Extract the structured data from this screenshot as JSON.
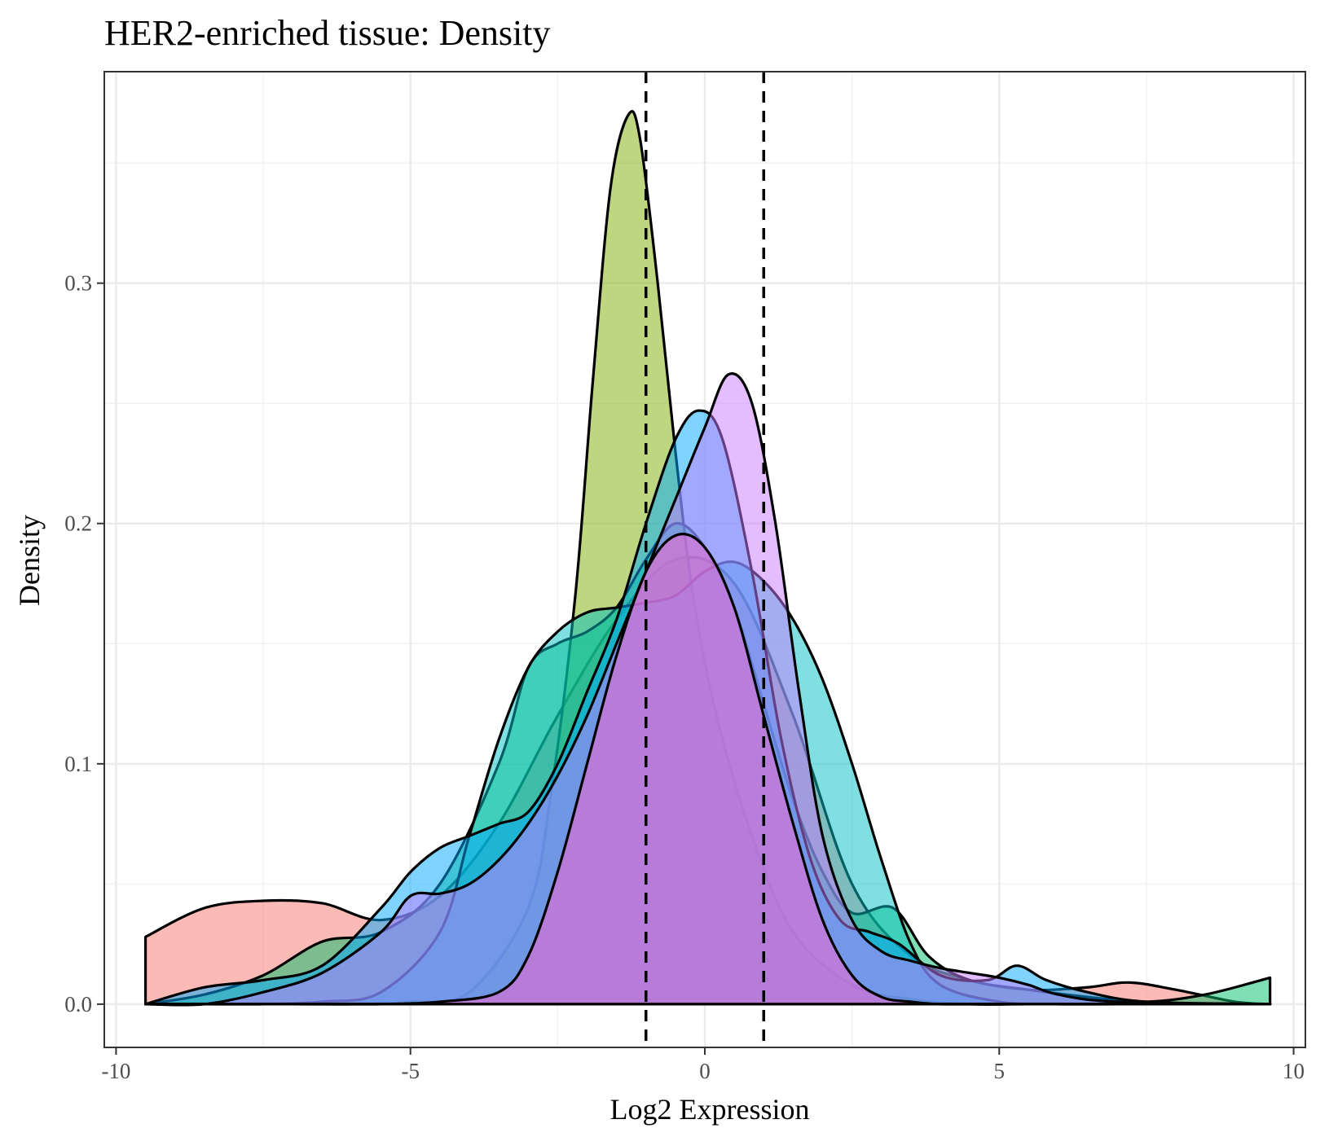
{
  "chart_data": {
    "type": "area",
    "title": "HER2-enriched tissue: Density",
    "xlabel": "Log2 Expression",
    "ylabel": "Density",
    "xlim": [
      -10.2,
      10.2
    ],
    "ylim": [
      -0.018,
      0.388
    ],
    "x_ticks": [
      -10,
      -5,
      0,
      5,
      10
    ],
    "x_tick_labels": [
      "-10",
      "-5",
      "0",
      "5",
      "10"
    ],
    "y_ticks": [
      0.0,
      0.1,
      0.2,
      0.3
    ],
    "y_tick_labels": [
      "0.0",
      "0.1",
      "0.2",
      "0.3"
    ],
    "grid": true,
    "legend": "none",
    "reference_lines_x": [
      -1,
      1
    ],
    "series": [
      {
        "color": "#F8766D",
        "x": [
          -9.5,
          -8.5,
          -7.5,
          -6.5,
          -5.5,
          -4.5,
          -3.5,
          -2.5,
          -1.5,
          -0.5,
          0.5,
          1.5,
          2.5,
          3.5,
          4.5,
          5.5,
          6.5,
          7.2,
          8,
          9,
          9.6
        ],
        "y": [
          0.028,
          0.04,
          0.043,
          0.042,
          0.035,
          0.045,
          0.075,
          0.12,
          0.16,
          0.185,
          0.175,
          0.12,
          0.05,
          0.02,
          0.01,
          0.006,
          0.007,
          0.009,
          0.006,
          0.001,
          0.0
        ]
      },
      {
        "color": "#7CAE00",
        "x": [
          -9.5,
          -8,
          -7,
          -6,
          -5,
          -4,
          -3,
          -2.6,
          -2.2,
          -1.9,
          -1.6,
          -1.3,
          -1.1,
          -0.8,
          -0.5,
          -0.2,
          0.2,
          0.8,
          1.5,
          2.5,
          3.5,
          4.5,
          5.5,
          7,
          9.6
        ],
        "y": [
          0.0,
          0.0,
          0.0,
          0.0,
          0.001,
          0.005,
          0.04,
          0.09,
          0.17,
          0.26,
          0.34,
          0.37,
          0.36,
          0.3,
          0.23,
          0.17,
          0.12,
          0.07,
          0.03,
          0.008,
          0.002,
          0.0,
          0.0,
          0.0,
          0.0
        ]
      },
      {
        "color": "#00BE67",
        "x": [
          -9.5,
          -8.5,
          -7.5,
          -6.5,
          -5.5,
          -4.5,
          -3.5,
          -3,
          -2.5,
          -2,
          -1.5,
          -1,
          -0.5,
          0,
          0.5,
          1,
          1.5,
          2,
          2.5,
          3.2,
          3.8,
          4.5,
          5.5,
          6.5,
          7.5,
          8.5,
          9.6
        ],
        "y": [
          0.0,
          0.004,
          0.012,
          0.026,
          0.03,
          0.05,
          0.1,
          0.14,
          0.15,
          0.155,
          0.165,
          0.185,
          0.2,
          0.19,
          0.165,
          0.125,
          0.085,
          0.055,
          0.038,
          0.04,
          0.02,
          0.01,
          0.006,
          0.003,
          0.001,
          0.004,
          0.011
        ]
      },
      {
        "color": "#00BFC4",
        "x": [
          -9.5,
          -8.5,
          -7.5,
          -6.5,
          -5.5,
          -4.5,
          -4,
          -3.5,
          -3,
          -2.5,
          -2,
          -1.5,
          -1,
          -0.5,
          0,
          0.5,
          1,
          1.5,
          2,
          2.5,
          3,
          3.5,
          4,
          5,
          6,
          7,
          9.6
        ],
        "y": [
          0.0,
          0.0,
          0.0,
          0.001,
          0.005,
          0.03,
          0.07,
          0.11,
          0.14,
          0.155,
          0.163,
          0.165,
          0.167,
          0.17,
          0.18,
          0.184,
          0.176,
          0.16,
          0.135,
          0.1,
          0.06,
          0.025,
          0.008,
          0.001,
          0.0,
          0.0,
          0.0
        ]
      },
      {
        "color": "#00A9FF",
        "x": [
          -9.5,
          -8.5,
          -7.5,
          -6.5,
          -5.5,
          -5,
          -4.5,
          -4,
          -3.5,
          -3,
          -2.5,
          -2,
          -1.5,
          -1,
          -0.5,
          -0.1,
          0.3,
          0.8,
          1.3,
          1.8,
          2.3,
          2.8,
          3.3,
          4,
          4.8,
          5.3,
          5.8,
          6.5,
          7.5,
          9.6
        ],
        "y": [
          0.0,
          0.007,
          0.01,
          0.016,
          0.04,
          0.055,
          0.065,
          0.07,
          0.075,
          0.08,
          0.1,
          0.13,
          0.16,
          0.2,
          0.235,
          0.247,
          0.235,
          0.18,
          0.11,
          0.06,
          0.035,
          0.03,
          0.025,
          0.012,
          0.01,
          0.016,
          0.01,
          0.005,
          0.001,
          0.0
        ]
      },
      {
        "color": "#C77CFF",
        "x": [
          -9.5,
          -8.5,
          -7.5,
          -6.5,
          -5.5,
          -5,
          -4.5,
          -4,
          -3.5,
          -3,
          -2.5,
          -2,
          -1.5,
          -1,
          -0.5,
          0,
          0.4,
          0.8,
          1.2,
          1.6,
          2,
          2.5,
          3,
          3.5,
          4,
          4.5,
          5,
          5.5,
          6,
          7,
          9.6
        ],
        "y": [
          0.0,
          0.0,
          0.005,
          0.013,
          0.03,
          0.045,
          0.046,
          0.05,
          0.06,
          0.075,
          0.095,
          0.12,
          0.15,
          0.18,
          0.21,
          0.24,
          0.262,
          0.25,
          0.2,
          0.13,
          0.07,
          0.035,
          0.022,
          0.018,
          0.015,
          0.013,
          0.011,
          0.008,
          0.004,
          0.001,
          0.0
        ]
      },
      {
        "color": "#FF61CC",
        "x": [
          -9.5,
          -8.5,
          -7.5,
          -6.5,
          -5.5,
          -4.5,
          -3.5,
          -3,
          -2.5,
          -2,
          -1.5,
          -1,
          -0.5,
          0,
          0.5,
          1,
          1.5,
          2,
          2.5,
          3,
          3.5,
          4,
          5,
          7,
          9.6
        ],
        "y": [
          0.0,
          0.0,
          0.0,
          0.0,
          0.0,
          0.001,
          0.005,
          0.02,
          0.055,
          0.1,
          0.145,
          0.18,
          0.195,
          0.19,
          0.165,
          0.12,
          0.075,
          0.035,
          0.012,
          0.003,
          0.001,
          0.0,
          0.0,
          0.0,
          0.0
        ]
      }
    ]
  }
}
